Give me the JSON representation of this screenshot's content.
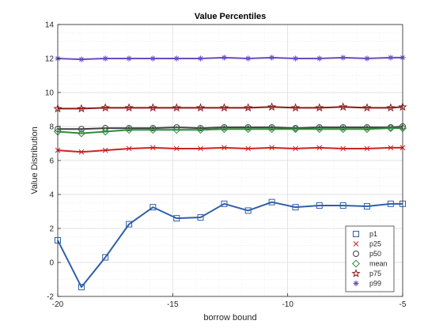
{
  "chart_data": {
    "type": "line",
    "title": "Value Percentiles",
    "xlabel": "borrow bound",
    "ylabel": "Value Distribution",
    "xlim": [
      -20,
      -5
    ],
    "ylim": [
      -2,
      14
    ],
    "x_ticks": [
      -20,
      -15,
      -10,
      -5
    ],
    "y_ticks": [
      -2,
      0,
      2,
      4,
      6,
      8,
      10,
      12,
      14
    ],
    "x_tick_labels": [
      "-20",
      "-15",
      "-10",
      "-5"
    ],
    "y_tick_labels": [
      "-2",
      "0",
      "2",
      "4",
      "6",
      "8",
      "10",
      "12",
      "14"
    ],
    "grid": true,
    "legend_position": "bottom-right",
    "x": [
      -20,
      -18.97,
      -17.93,
      -16.9,
      -15.86,
      -14.83,
      -13.79,
      -12.76,
      -11.72,
      -10.69,
      -9.66,
      -8.62,
      -7.59,
      -6.55,
      -5.52,
      -5
    ],
    "series": [
      {
        "name": "p1",
        "marker": "square",
        "color": "#2f5fa8",
        "values": [
          1.3,
          -1.45,
          0.3,
          2.25,
          3.25,
          2.6,
          2.65,
          3.45,
          3.05,
          3.55,
          3.25,
          3.35,
          3.35,
          3.3,
          3.45,
          3.45
        ]
      },
      {
        "name": "p25",
        "marker": "x",
        "color": "#cc2222",
        "values": [
          6.6,
          6.5,
          6.6,
          6.7,
          6.75,
          6.7,
          6.7,
          6.75,
          6.7,
          6.75,
          6.7,
          6.75,
          6.7,
          6.7,
          6.75,
          6.75
        ]
      },
      {
        "name": "p50",
        "marker": "circle",
        "color": "#404040",
        "values": [
          7.85,
          7.85,
          7.9,
          7.9,
          7.9,
          7.95,
          7.9,
          7.95,
          7.95,
          7.95,
          7.9,
          7.95,
          7.95,
          7.95,
          7.95,
          8.0
        ]
      },
      {
        "name": "mean",
        "marker": "diamond",
        "color": "#2e8b3e",
        "values": [
          7.7,
          7.6,
          7.7,
          7.8,
          7.8,
          7.8,
          7.8,
          7.85,
          7.85,
          7.85,
          7.85,
          7.85,
          7.85,
          7.85,
          7.9,
          7.9
        ]
      },
      {
        "name": "p75",
        "marker": "pentagram",
        "color": "#8b1a1a",
        "values": [
          9.05,
          9.05,
          9.1,
          9.1,
          9.1,
          9.1,
          9.1,
          9.1,
          9.1,
          9.15,
          9.1,
          9.1,
          9.15,
          9.1,
          9.1,
          9.15
        ]
      },
      {
        "name": "p99",
        "marker": "asterisk",
        "color": "#6a4bc4",
        "values": [
          12.0,
          11.95,
          12.0,
          12.0,
          12.0,
          12.0,
          12.0,
          12.05,
          12.0,
          12.05,
          12.0,
          12.0,
          12.05,
          12.0,
          12.05,
          12.05
        ]
      }
    ]
  }
}
